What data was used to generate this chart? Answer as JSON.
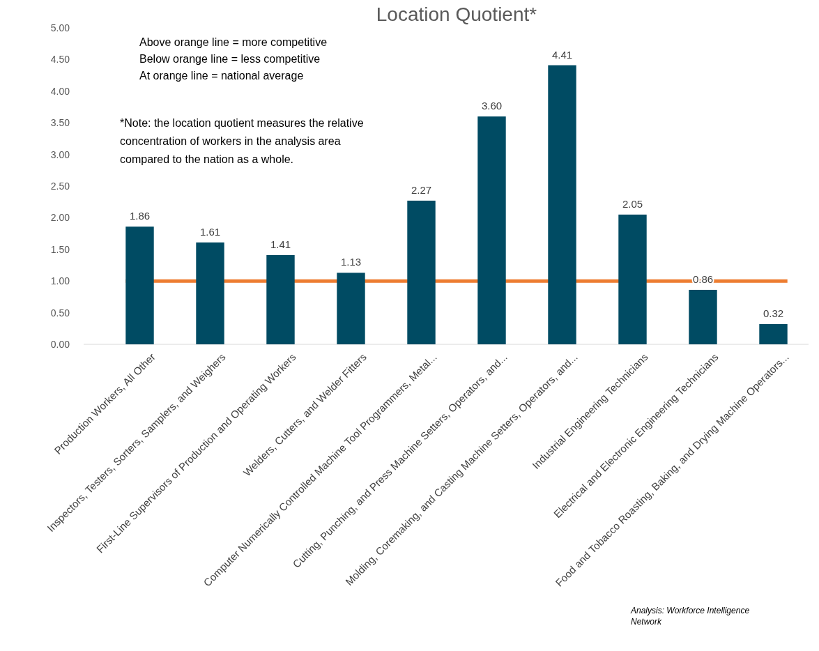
{
  "chart_data": {
    "type": "bar",
    "title": "Location Quotient*",
    "categories": [
      "Production Workers, All Other",
      "Inspectors, Testers, Sorters, Samplers, and Weighers",
      "First-Line Supervisors of Production and Operating Workers",
      "Welders, Cutters, and Welder Fitters",
      "Computer Numerically Controlled Machine Tool Programmers, Metal...",
      "Cutting, Punching, and Press Machine Setters, Operators, and...",
      "Molding, Coremaking, and Casting Machine Setters, Operators, and...",
      "Industrial Engineering Technicians",
      "Electrical and Electronic Engineering Technicians",
      "Food and Tobacco Roasting, Baking, and Drying Machine Operators..."
    ],
    "values": [
      1.86,
      1.61,
      1.41,
      1.13,
      2.27,
      3.6,
      4.41,
      2.05,
      0.86,
      0.32
    ],
    "value_labels": [
      "1.86",
      "1.61",
      "1.41",
      "1.13",
      "2.27",
      "3.60",
      "4.41",
      "2.05",
      "0.86",
      "0.32"
    ],
    "color": "#004b63",
    "ylim": [
      0,
      5
    ],
    "yticks": [
      {
        "value": 0,
        "label": "0.00"
      },
      {
        "value": 0.5,
        "label": "0.50"
      },
      {
        "value": 1,
        "label": "1.00"
      },
      {
        "value": 1.5,
        "label": "1.50"
      },
      {
        "value": 2,
        "label": "2.00"
      },
      {
        "value": 2.5,
        "label": "2.50"
      },
      {
        "value": 3,
        "label": "3.00"
      },
      {
        "value": 3.5,
        "label": "3.50"
      },
      {
        "value": 4,
        "label": "4.00"
      },
      {
        "value": 4.5,
        "label": "4.50"
      },
      {
        "value": 5,
        "label": "5.00"
      }
    ],
    "ref_lines": [
      {
        "axis": "y",
        "value": 1,
        "color": "#ed7d31"
      }
    ],
    "annotations": [
      "Above orange line = more competitive",
      "Below orange line = less competitive",
      "At orange line = national average",
      "*Note: the location quotient measures the relative concentration of workers in the analysis area compared to the nation as a whole.",
      "Analysis: Workforce Intelligence Network"
    ]
  }
}
